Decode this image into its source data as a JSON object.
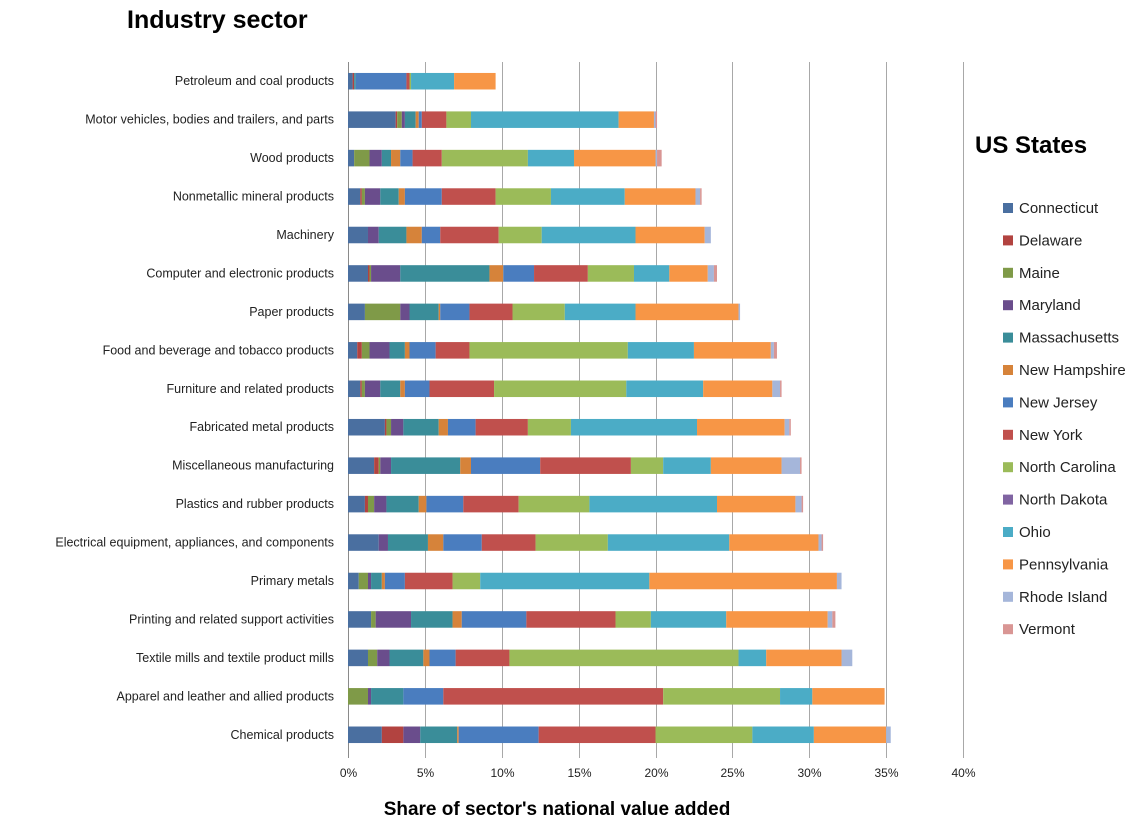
{
  "chart_data": {
    "type": "bar",
    "orientation": "horizontal",
    "stacked": true,
    "y_title": "Industry sector",
    "x_title": "Share of sector's national value added",
    "legend_title": "US States",
    "legend_position": "right",
    "xlim": [
      0,
      0.4
    ],
    "x_ticks": [
      0,
      0.05,
      0.1,
      0.15,
      0.2,
      0.25,
      0.3,
      0.35,
      0.4
    ],
    "x_tick_labels": [
      "0%",
      "5%",
      "10%",
      "15%",
      "20%",
      "25%",
      "30%",
      "35%",
      "40%"
    ],
    "grid": "vertical",
    "categories": [
      "Petroleum and coal products",
      "Motor vehicles, bodies and trailers, and parts",
      "Wood products",
      "Nonmetallic mineral products",
      "Machinery",
      "Computer and electronic products",
      "Paper products",
      "Food and beverage and tobacco products",
      "Furniture and related products",
      "Fabricated metal products",
      "Miscellaneous manufacturing",
      "Plastics and rubber products",
      "Electrical equipment, appliances, and components",
      "Primary metals",
      "Printing and related support activities",
      "Textile mills and textile product mills",
      "Apparel and leather and allied products",
      "Chemical products"
    ],
    "series": [
      {
        "name": "Connecticut",
        "color": "#4A6FA0",
        "values": [
          0.003,
          0.031,
          0.004,
          0.008,
          0.013,
          0.013,
          0.011,
          0.006,
          0.008,
          0.024,
          0.017,
          0.011,
          0.02,
          0.007,
          0.015,
          0.013,
          0.0,
          0.022
        ]
      },
      {
        "name": "Delaware",
        "color": "#B24340",
        "values": [
          0.001,
          0.001,
          0.0,
          0.001,
          0.0,
          0.001,
          0.0,
          0.003,
          0.001,
          0.001,
          0.003,
          0.002,
          0.0,
          0.0,
          0.0,
          0.0,
          0.0,
          0.014
        ]
      },
      {
        "name": "Maine",
        "color": "#7F9A48",
        "values": [
          0.0,
          0.003,
          0.01,
          0.002,
          0.0,
          0.001,
          0.023,
          0.005,
          0.002,
          0.003,
          0.001,
          0.004,
          0.0,
          0.006,
          0.003,
          0.006,
          0.013,
          0.0
        ]
      },
      {
        "name": "Maryland",
        "color": "#6A4D8C",
        "values": [
          0.0,
          0.002,
          0.008,
          0.01,
          0.007,
          0.019,
          0.006,
          0.013,
          0.01,
          0.008,
          0.007,
          0.008,
          0.006,
          0.002,
          0.023,
          0.008,
          0.002,
          0.011
        ]
      },
      {
        "name": "Massachusetts",
        "color": "#3A8D99",
        "values": [
          0.001,
          0.007,
          0.006,
          0.012,
          0.018,
          0.058,
          0.019,
          0.01,
          0.013,
          0.023,
          0.045,
          0.021,
          0.026,
          0.007,
          0.027,
          0.022,
          0.021,
          0.024
        ]
      },
      {
        "name": "New Hampshire",
        "color": "#D6833A",
        "values": [
          0.0,
          0.002,
          0.006,
          0.004,
          0.01,
          0.009,
          0.001,
          0.003,
          0.003,
          0.006,
          0.007,
          0.005,
          0.01,
          0.002,
          0.006,
          0.004,
          0.0,
          0.001
        ]
      },
      {
        "name": "New Jersey",
        "color": "#4A7DBF",
        "values": [
          0.033,
          0.002,
          0.008,
          0.024,
          0.012,
          0.02,
          0.019,
          0.017,
          0.016,
          0.018,
          0.045,
          0.024,
          0.025,
          0.013,
          0.042,
          0.017,
          0.026,
          0.052
        ]
      },
      {
        "name": "New York",
        "color": "#C0504D",
        "values": [
          0.002,
          0.016,
          0.019,
          0.035,
          0.038,
          0.035,
          0.028,
          0.022,
          0.042,
          0.034,
          0.059,
          0.036,
          0.035,
          0.031,
          0.058,
          0.035,
          0.143,
          0.076
        ]
      },
      {
        "name": "North Carolina",
        "color": "#9BBB59",
        "values": [
          0.001,
          0.016,
          0.056,
          0.036,
          0.028,
          0.03,
          0.034,
          0.103,
          0.086,
          0.028,
          0.021,
          0.046,
          0.047,
          0.018,
          0.023,
          0.149,
          0.076,
          0.063
        ]
      },
      {
        "name": "North Dakota",
        "color": "#8064A2",
        "values": [
          0.0,
          0.0,
          0.0,
          0.0,
          0.0,
          0.0,
          0.0,
          0.0,
          0.0,
          0.0,
          0.0,
          0.0,
          0.0,
          0.0,
          0.0,
          0.0,
          0.0,
          0.0
        ]
      },
      {
        "name": "Ohio",
        "color": "#4BACC6",
        "values": [
          0.028,
          0.096,
          0.03,
          0.048,
          0.061,
          0.023,
          0.046,
          0.043,
          0.05,
          0.082,
          0.031,
          0.083,
          0.079,
          0.11,
          0.049,
          0.018,
          0.021,
          0.04
        ]
      },
      {
        "name": "Pennsylvania",
        "color": "#F79646",
        "values": [
          0.027,
          0.023,
          0.053,
          0.046,
          0.045,
          0.025,
          0.067,
          0.05,
          0.045,
          0.057,
          0.046,
          0.051,
          0.058,
          0.122,
          0.066,
          0.049,
          0.047,
          0.047
        ]
      },
      {
        "name": "Rhode Island",
        "color": "#A5B6DA",
        "values": [
          0.0,
          0.001,
          0.001,
          0.003,
          0.004,
          0.004,
          0.001,
          0.002,
          0.005,
          0.003,
          0.012,
          0.004,
          0.002,
          0.003,
          0.003,
          0.007,
          0.0,
          0.003
        ]
      },
      {
        "name": "Vermont",
        "color": "#D99694",
        "values": [
          0.0,
          0.001,
          0.003,
          0.001,
          0.0,
          0.002,
          0.0,
          0.002,
          0.001,
          0.001,
          0.001,
          0.001,
          0.001,
          0.0,
          0.002,
          0.0,
          0.0,
          0.0
        ]
      }
    ]
  }
}
